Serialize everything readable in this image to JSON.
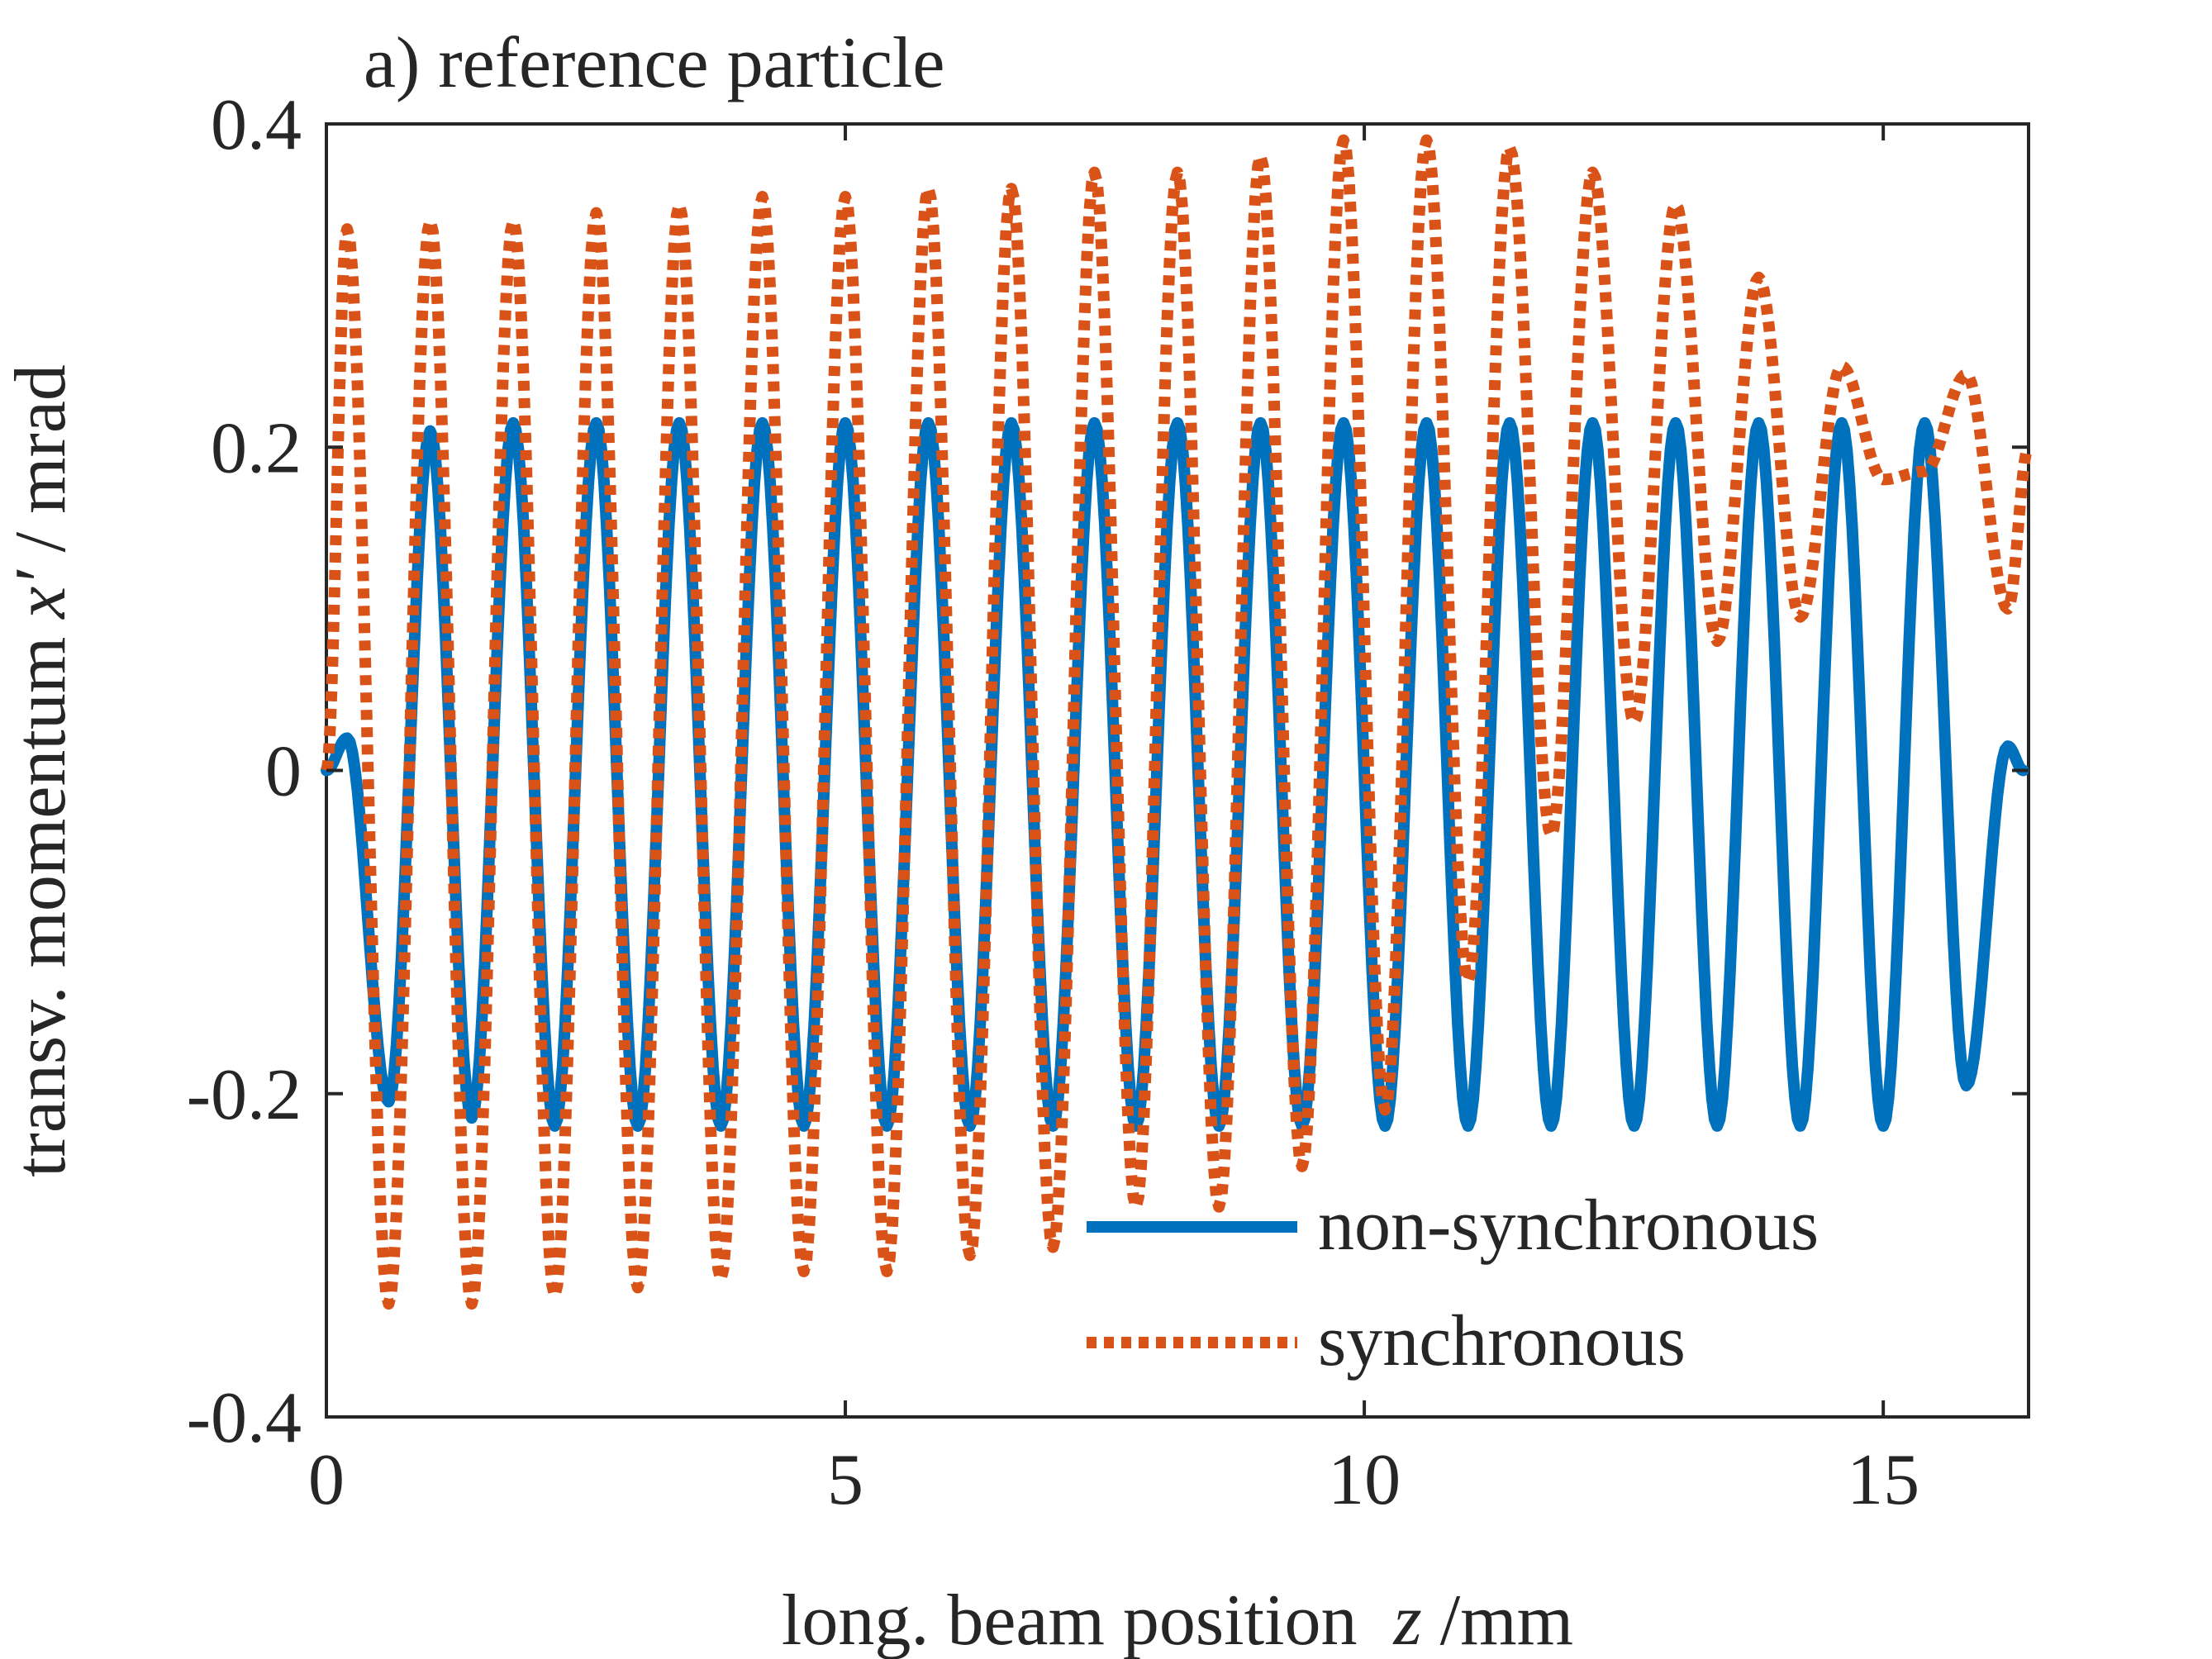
{
  "chart_data": {
    "type": "line",
    "title": "a) reference particle",
    "xlabel": "long. beam position",
    "xlabel_var": "z",
    "xlabel_unit": " /mm",
    "ylabel_pre": "transv. momentum ",
    "ylabel_var": "x′",
    "ylabel_post": " / mrad",
    "xlim": [
      0,
      16.4
    ],
    "ylim": [
      -0.4,
      0.4
    ],
    "xticks": [
      0,
      5,
      10,
      15
    ],
    "xtick_labels": [
      "0",
      "5",
      "10",
      "15"
    ],
    "yticks": [
      -0.4,
      -0.2,
      0,
      0.2,
      0.4
    ],
    "ytick_labels": [
      "-0.4",
      "-0.2",
      "0",
      "0.2",
      "0.4"
    ],
    "grid": false,
    "legend_position": "bottom-right",
    "series": [
      {
        "name": "non-synchronous",
        "color": "#0072BD",
        "style": "solid",
        "x": [
          0,
          0.2,
          0.6,
          1.0,
          1.4,
          1.8,
          2.2,
          2.6,
          3.0,
          3.4,
          3.8,
          4.2,
          4.6,
          5.0,
          5.4,
          5.8,
          6.2,
          6.6,
          7.0,
          7.4,
          7.8,
          8.2,
          8.6,
          9.0,
          9.4,
          9.8,
          10.2,
          10.6,
          11.0,
          11.4,
          11.8,
          12.2,
          12.6,
          13.0,
          13.4,
          13.8,
          14.2,
          14.6,
          15.0,
          15.4,
          15.8,
          16.2,
          16.35
        ],
        "values": [
          0,
          0.02,
          -0.205,
          0.21,
          -0.215,
          0.215,
          -0.22,
          0.215,
          -0.22,
          0.215,
          -0.22,
          0.215,
          -0.22,
          0.215,
          -0.22,
          0.215,
          -0.22,
          0.215,
          -0.22,
          0.215,
          -0.22,
          0.215,
          -0.22,
          0.215,
          -0.22,
          0.215,
          -0.22,
          0.215,
          -0.22,
          0.215,
          -0.22,
          0.215,
          -0.22,
          0.215,
          -0.22,
          0.215,
          -0.22,
          0.215,
          -0.22,
          0.215,
          -0.195,
          0.015,
          0
        ]
      },
      {
        "name": "synchronous",
        "color": "#D95319",
        "style": "dotted",
        "x": [
          0,
          0.2,
          0.6,
          1.0,
          1.4,
          1.8,
          2.2,
          2.6,
          3.0,
          3.4,
          3.8,
          4.2,
          4.6,
          5.0,
          5.4,
          5.8,
          6.2,
          6.6,
          7.0,
          7.4,
          7.8,
          8.2,
          8.6,
          9.0,
          9.4,
          9.8,
          10.2,
          10.6,
          11.0,
          11.4,
          11.8,
          12.2,
          12.6,
          13.0,
          13.4,
          13.8,
          14.2,
          14.6,
          15.0,
          15.4,
          15.8,
          16.2,
          16.4
        ],
        "values": [
          0,
          0.335,
          -0.33,
          0.34,
          -0.33,
          0.34,
          -0.325,
          0.345,
          -0.32,
          0.35,
          -0.315,
          0.355,
          -0.31,
          0.355,
          -0.31,
          0.36,
          -0.3,
          0.36,
          -0.295,
          0.37,
          -0.27,
          0.37,
          -0.27,
          0.38,
          -0.245,
          0.39,
          -0.21,
          0.39,
          -0.13,
          0.385,
          -0.04,
          0.37,
          0.03,
          0.35,
          0.08,
          0.305,
          0.095,
          0.25,
          0.18,
          0.185,
          0.245,
          0.1,
          0.2
        ]
      }
    ]
  }
}
